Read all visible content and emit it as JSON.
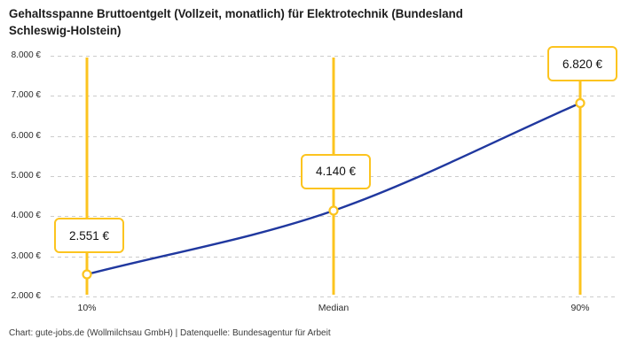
{
  "title": {
    "line1": "Gehaltsspanne Bruttoentgelt (Vollzeit, monatlich) für Elektrotechnik (Bundesland",
    "line2": "Schleswig-Holstein)"
  },
  "footer": "Chart: gute-jobs.de (Wollmilchsau GmbH) | Datenquelle: Bundesagentur für Arbeit",
  "colors": {
    "accent_yellow": "#fcc41f",
    "line_blue": "#20389f",
    "grid_gray": "#cccccc",
    "title_text": "#1d1d1d",
    "axis_text": "#2b2b2b"
  },
  "chart_data": {
    "type": "line",
    "title": "Gehaltsspanne Bruttoentgelt (Vollzeit, monatlich) für Elektrotechnik (Bundesland Schleswig-Holstein)",
    "categories": [
      "10%",
      "Median",
      "90%"
    ],
    "values": [
      2551,
      4140,
      6820
    ],
    "value_labels": [
      "2.551 €",
      "4.140 €",
      "6.820 €"
    ],
    "xlabel": "",
    "ylabel": "",
    "ylim": [
      2000,
      8000
    ],
    "yticks": [
      8000,
      7000,
      6000,
      5000,
      4000,
      3000,
      2000
    ],
    "ytick_labels": [
      "8.000 €",
      "7.000 €",
      "6.000 €",
      "5.000 €",
      "4.000 €",
      "3.000 €",
      "2.000 €"
    ],
    "grid": "horizontal-dashed",
    "legend": "none",
    "marker": "open-circle",
    "annotations": "yellow vertical reference line and value callout box at each category"
  }
}
